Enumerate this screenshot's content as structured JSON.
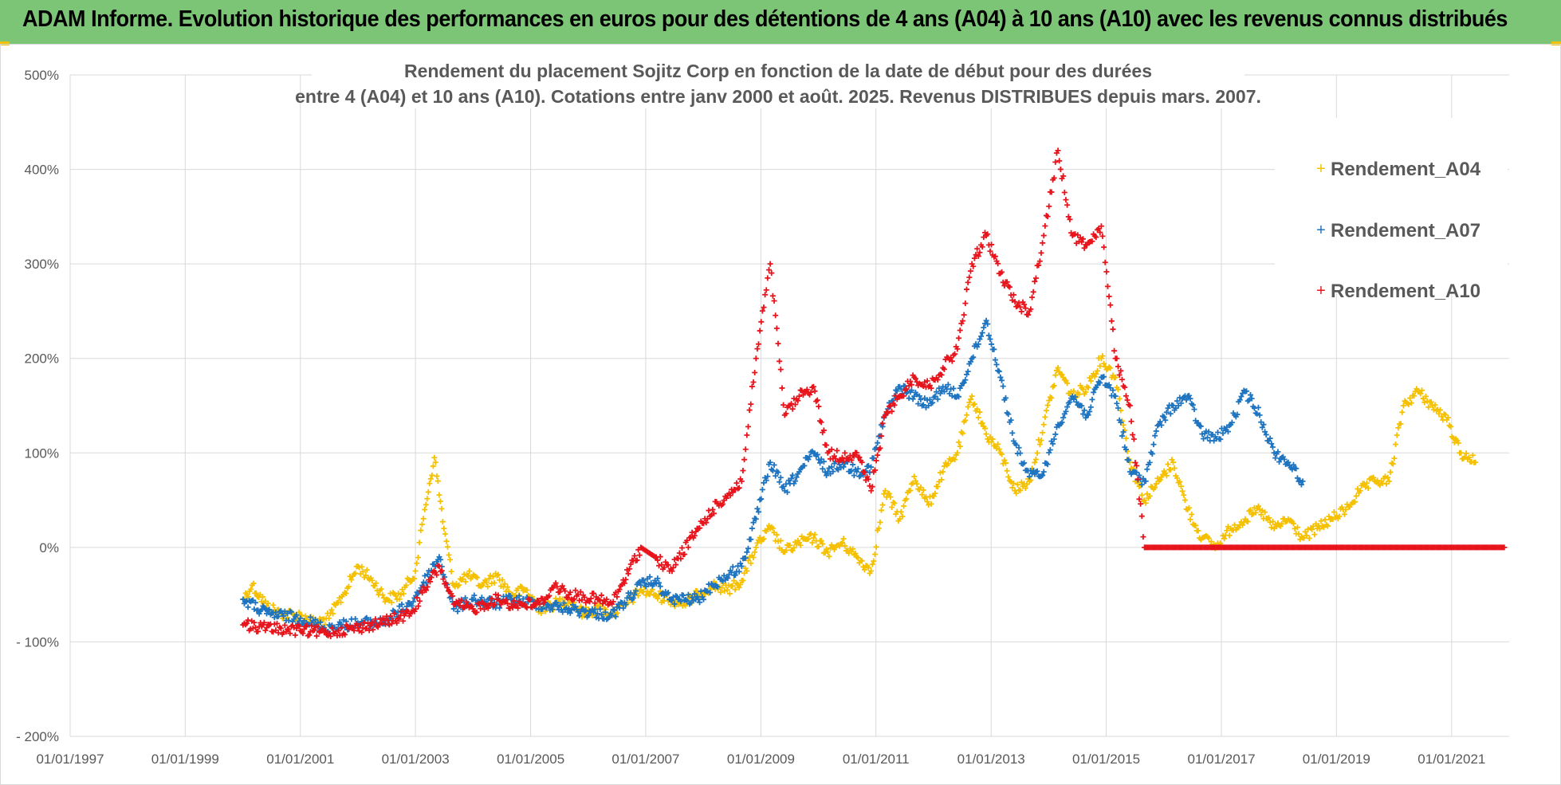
{
  "header": {
    "title": "ADAM Informe. Evolution historique des performances en euros pour des détentions de 4 ans (A04) à 10 ans (A10) avec les revenus connus distribués"
  },
  "colors": {
    "header_bg": "#7cc576",
    "A04": "#f5c000",
    "A07": "#1f74c0",
    "A10": "#e8141c",
    "grid": "#d9d9d9",
    "text": "#595959"
  },
  "chart_data": {
    "type": "scatter",
    "title_line1": "Rendement du placement Sojitz Corp en fonction de la date de début pour des durées",
    "title_line2": "entre 4 (A04) et 10 ans (A10). Cotations entre janv 2000 et août. 2025. Revenus DISTRIBUES depuis mars. 2007.",
    "marker": "+",
    "legend_position": "top-right",
    "grid": true,
    "xlim": [
      "1997-01-01",
      "2022-01-01"
    ],
    "x_ticks": [
      "01/01/1997",
      "01/01/1999",
      "01/01/2001",
      "01/01/2003",
      "01/01/2005",
      "01/01/2007",
      "01/01/2009",
      "01/01/2011",
      "01/01/2013",
      "01/01/2015",
      "01/01/2017",
      "01/01/2019",
      "01/01/2021"
    ],
    "ylim": [
      -200,
      500
    ],
    "y_ticks": [
      "500%",
      "400%",
      "300%",
      "200%",
      "100%",
      "0%",
      "- 100%",
      "- 200%"
    ],
    "y_tick_values": [
      500,
      400,
      300,
      200,
      100,
      0,
      -100,
      -200
    ],
    "series": [
      {
        "name": "Rendement_A04",
        "color": "#f5c000",
        "points": [
          [
            "2000-01-03",
            -55
          ],
          [
            "2000-03-01",
            -40
          ],
          [
            "2000-06-01",
            -62
          ],
          [
            "2000-09-01",
            -70
          ],
          [
            "2001-01-01",
            -72
          ],
          [
            "2001-04-01",
            -80
          ],
          [
            "2001-07-01",
            -75
          ],
          [
            "2001-10-01",
            -50
          ],
          [
            "2002-01-01",
            -20
          ],
          [
            "2002-04-01",
            -35
          ],
          [
            "2002-07-01",
            -55
          ],
          [
            "2002-10-01",
            -50
          ],
          [
            "2003-01-01",
            -25
          ],
          [
            "2003-03-01",
            40
          ],
          [
            "2003-05-01",
            95
          ],
          [
            "2003-07-01",
            20
          ],
          [
            "2003-09-01",
            -40
          ],
          [
            "2003-12-01",
            -30
          ],
          [
            "2004-03-01",
            -40
          ],
          [
            "2004-06-01",
            -30
          ],
          [
            "2004-09-01",
            -50
          ],
          [
            "2004-12-01",
            -45
          ],
          [
            "2005-03-01",
            -65
          ],
          [
            "2005-06-01",
            -60
          ],
          [
            "2005-09-01",
            -55
          ],
          [
            "2005-12-01",
            -70
          ],
          [
            "2006-03-01",
            -65
          ],
          [
            "2006-06-01",
            -70
          ],
          [
            "2006-09-01",
            -60
          ],
          [
            "2006-12-01",
            -45
          ],
          [
            "2007-03-01",
            -50
          ],
          [
            "2007-06-01",
            -55
          ],
          [
            "2007-09-01",
            -60
          ],
          [
            "2007-12-01",
            -50
          ],
          [
            "2008-03-01",
            -40
          ],
          [
            "2008-06-01",
            -45
          ],
          [
            "2008-09-01",
            -35
          ],
          [
            "2008-12-01",
            0
          ],
          [
            "2009-03-01",
            20
          ],
          [
            "2009-06-01",
            -5
          ],
          [
            "2009-09-01",
            5
          ],
          [
            "2009-12-01",
            10
          ],
          [
            "2010-03-01",
            -5
          ],
          [
            "2010-06-01",
            5
          ],
          [
            "2010-09-01",
            -10
          ],
          [
            "2010-12-01",
            -25
          ],
          [
            "2011-03-01",
            60
          ],
          [
            "2011-06-01",
            30
          ],
          [
            "2011-09-01",
            75
          ],
          [
            "2011-12-01",
            45
          ],
          [
            "2012-03-01",
            80
          ],
          [
            "2012-06-01",
            100
          ],
          [
            "2012-09-01",
            160
          ],
          [
            "2012-12-01",
            120
          ],
          [
            "2013-03-01",
            100
          ],
          [
            "2013-06-01",
            60
          ],
          [
            "2013-09-01",
            70
          ],
          [
            "2013-12-01",
            130
          ],
          [
            "2014-03-01",
            190
          ],
          [
            "2014-06-01",
            160
          ],
          [
            "2014-09-01",
            170
          ],
          [
            "2014-12-01",
            200
          ],
          [
            "2015-03-01",
            180
          ],
          [
            "2015-06-01",
            90
          ],
          [
            "2015-09-01",
            50
          ],
          [
            "2015-12-01",
            70
          ],
          [
            "2016-03-01",
            90
          ],
          [
            "2016-06-01",
            40
          ],
          [
            "2016-09-01",
            10
          ],
          [
            "2016-12-01",
            0
          ],
          [
            "2017-03-01",
            20
          ],
          [
            "2017-06-01",
            30
          ],
          [
            "2017-09-01",
            40
          ],
          [
            "2017-12-01",
            20
          ],
          [
            "2018-03-01",
            30
          ],
          [
            "2018-06-01",
            10
          ],
          [
            "2018-09-01",
            20
          ],
          [
            "2018-12-01",
            30
          ],
          [
            "2019-03-01",
            40
          ],
          [
            "2019-06-01",
            60
          ],
          [
            "2019-09-01",
            70
          ],
          [
            "2019-12-01",
            70
          ],
          [
            "2020-03-01",
            150
          ],
          [
            "2020-06-01",
            165
          ],
          [
            "2020-09-01",
            150
          ],
          [
            "2020-12-01",
            135
          ],
          [
            "2021-03-01",
            100
          ],
          [
            "2021-06-01",
            90
          ]
        ]
      },
      {
        "name": "Rendement_A07",
        "color": "#1f74c0",
        "points": [
          [
            "2000-01-03",
            -55
          ],
          [
            "2000-06-01",
            -70
          ],
          [
            "2001-01-01",
            -75
          ],
          [
            "2001-06-01",
            -85
          ],
          [
            "2002-01-01",
            -80
          ],
          [
            "2002-06-01",
            -80
          ],
          [
            "2002-12-01",
            -60
          ],
          [
            "2003-06-01",
            -10
          ],
          [
            "2003-09-01",
            -65
          ],
          [
            "2004-01-01",
            -55
          ],
          [
            "2004-06-01",
            -60
          ],
          [
            "2004-09-01",
            -55
          ],
          [
            "2005-03-01",
            -60
          ],
          [
            "2005-09-01",
            -65
          ],
          [
            "2006-03-01",
            -70
          ],
          [
            "2006-06-01",
            -72
          ],
          [
            "2006-12-01",
            -40
          ],
          [
            "2007-03-01",
            -35
          ],
          [
            "2007-06-01",
            -55
          ],
          [
            "2007-12-01",
            -55
          ],
          [
            "2008-03-01",
            -40
          ],
          [
            "2008-09-01",
            -20
          ],
          [
            "2008-12-01",
            30
          ],
          [
            "2009-03-01",
            90
          ],
          [
            "2009-06-01",
            60
          ],
          [
            "2009-09-01",
            80
          ],
          [
            "2009-12-01",
            100
          ],
          [
            "2010-03-01",
            80
          ],
          [
            "2010-06-01",
            90
          ],
          [
            "2010-09-01",
            80
          ],
          [
            "2010-12-01",
            85
          ],
          [
            "2011-03-01",
            140
          ],
          [
            "2011-06-01",
            170
          ],
          [
            "2011-09-01",
            160
          ],
          [
            "2011-12-01",
            150
          ],
          [
            "2012-03-01",
            170
          ],
          [
            "2012-06-01",
            160
          ],
          [
            "2012-09-01",
            200
          ],
          [
            "2012-12-01",
            240
          ],
          [
            "2013-03-01",
            180
          ],
          [
            "2013-06-01",
            110
          ],
          [
            "2013-09-01",
            75
          ],
          [
            "2013-12-01",
            80
          ],
          [
            "2014-03-01",
            130
          ],
          [
            "2014-06-01",
            160
          ],
          [
            "2014-09-01",
            140
          ],
          [
            "2014-12-01",
            180
          ],
          [
            "2015-03-01",
            160
          ],
          [
            "2015-06-01",
            80
          ],
          [
            "2015-09-01",
            70
          ],
          [
            "2015-12-01",
            130
          ],
          [
            "2016-03-01",
            150
          ],
          [
            "2016-06-01",
            160
          ],
          [
            "2016-09-01",
            120
          ],
          [
            "2016-12-01",
            115
          ],
          [
            "2017-03-01",
            130
          ],
          [
            "2017-06-01",
            165
          ],
          [
            "2017-09-01",
            140
          ],
          [
            "2017-12-01",
            100
          ],
          [
            "2018-03-01",
            90
          ],
          [
            "2018-06-01",
            70
          ]
        ]
      },
      {
        "name": "Rendement_A10",
        "color": "#e8141c",
        "points": [
          [
            "2000-01-03",
            -82
          ],
          [
            "2000-06-01",
            -85
          ],
          [
            "2001-01-01",
            -88
          ],
          [
            "2001-06-01",
            -90
          ],
          [
            "2002-01-01",
            -85
          ],
          [
            "2002-06-01",
            -80
          ],
          [
            "2002-12-01",
            -70
          ],
          [
            "2003-06-01",
            -20
          ],
          [
            "2003-09-01",
            -60
          ],
          [
            "2004-01-01",
            -65
          ],
          [
            "2004-06-01",
            -55
          ],
          [
            "2004-09-01",
            -60
          ],
          [
            "2005-03-01",
            -60
          ],
          [
            "2005-06-01",
            -40
          ],
          [
            "2005-09-01",
            -50
          ],
          [
            "2006-03-01",
            -55
          ],
          [
            "2006-06-01",
            -60
          ],
          [
            "2006-12-01",
            0
          ],
          [
            "2007-03-01",
            -10
          ],
          [
            "2007-06-01",
            -25
          ],
          [
            "2007-12-01",
            20
          ],
          [
            "2008-03-01",
            40
          ],
          [
            "2008-09-01",
            70
          ],
          [
            "2008-12-01",
            200
          ],
          [
            "2009-03-01",
            300
          ],
          [
            "2009-06-01",
            140
          ],
          [
            "2009-09-01",
            160
          ],
          [
            "2009-12-01",
            170
          ],
          [
            "2010-03-01",
            100
          ],
          [
            "2010-06-01",
            95
          ],
          [
            "2010-09-01",
            100
          ],
          [
            "2010-12-01",
            60
          ],
          [
            "2011-03-01",
            140
          ],
          [
            "2011-06-01",
            160
          ],
          [
            "2011-09-01",
            180
          ],
          [
            "2011-12-01",
            170
          ],
          [
            "2012-03-01",
            190
          ],
          [
            "2012-06-01",
            210
          ],
          [
            "2012-09-01",
            300
          ],
          [
            "2012-12-01",
            330
          ],
          [
            "2013-03-01",
            290
          ],
          [
            "2013-06-01",
            260
          ],
          [
            "2013-09-01",
            250
          ],
          [
            "2013-12-01",
            330
          ],
          [
            "2014-03-01",
            420
          ],
          [
            "2014-06-01",
            330
          ],
          [
            "2014-09-01",
            320
          ],
          [
            "2014-12-01",
            340
          ],
          [
            "2015-03-01",
            200
          ],
          [
            "2015-06-01",
            150
          ],
          [
            "2015-09-01",
            0
          ],
          [
            "2016-06-01",
            0
          ],
          [
            "2017-06-01",
            0
          ],
          [
            "2018-06-01",
            0
          ],
          [
            "2019-06-01",
            0
          ],
          [
            "2020-06-01",
            0
          ],
          [
            "2021-06-01",
            0
          ],
          [
            "2021-12-01",
            0
          ]
        ]
      }
    ]
  }
}
